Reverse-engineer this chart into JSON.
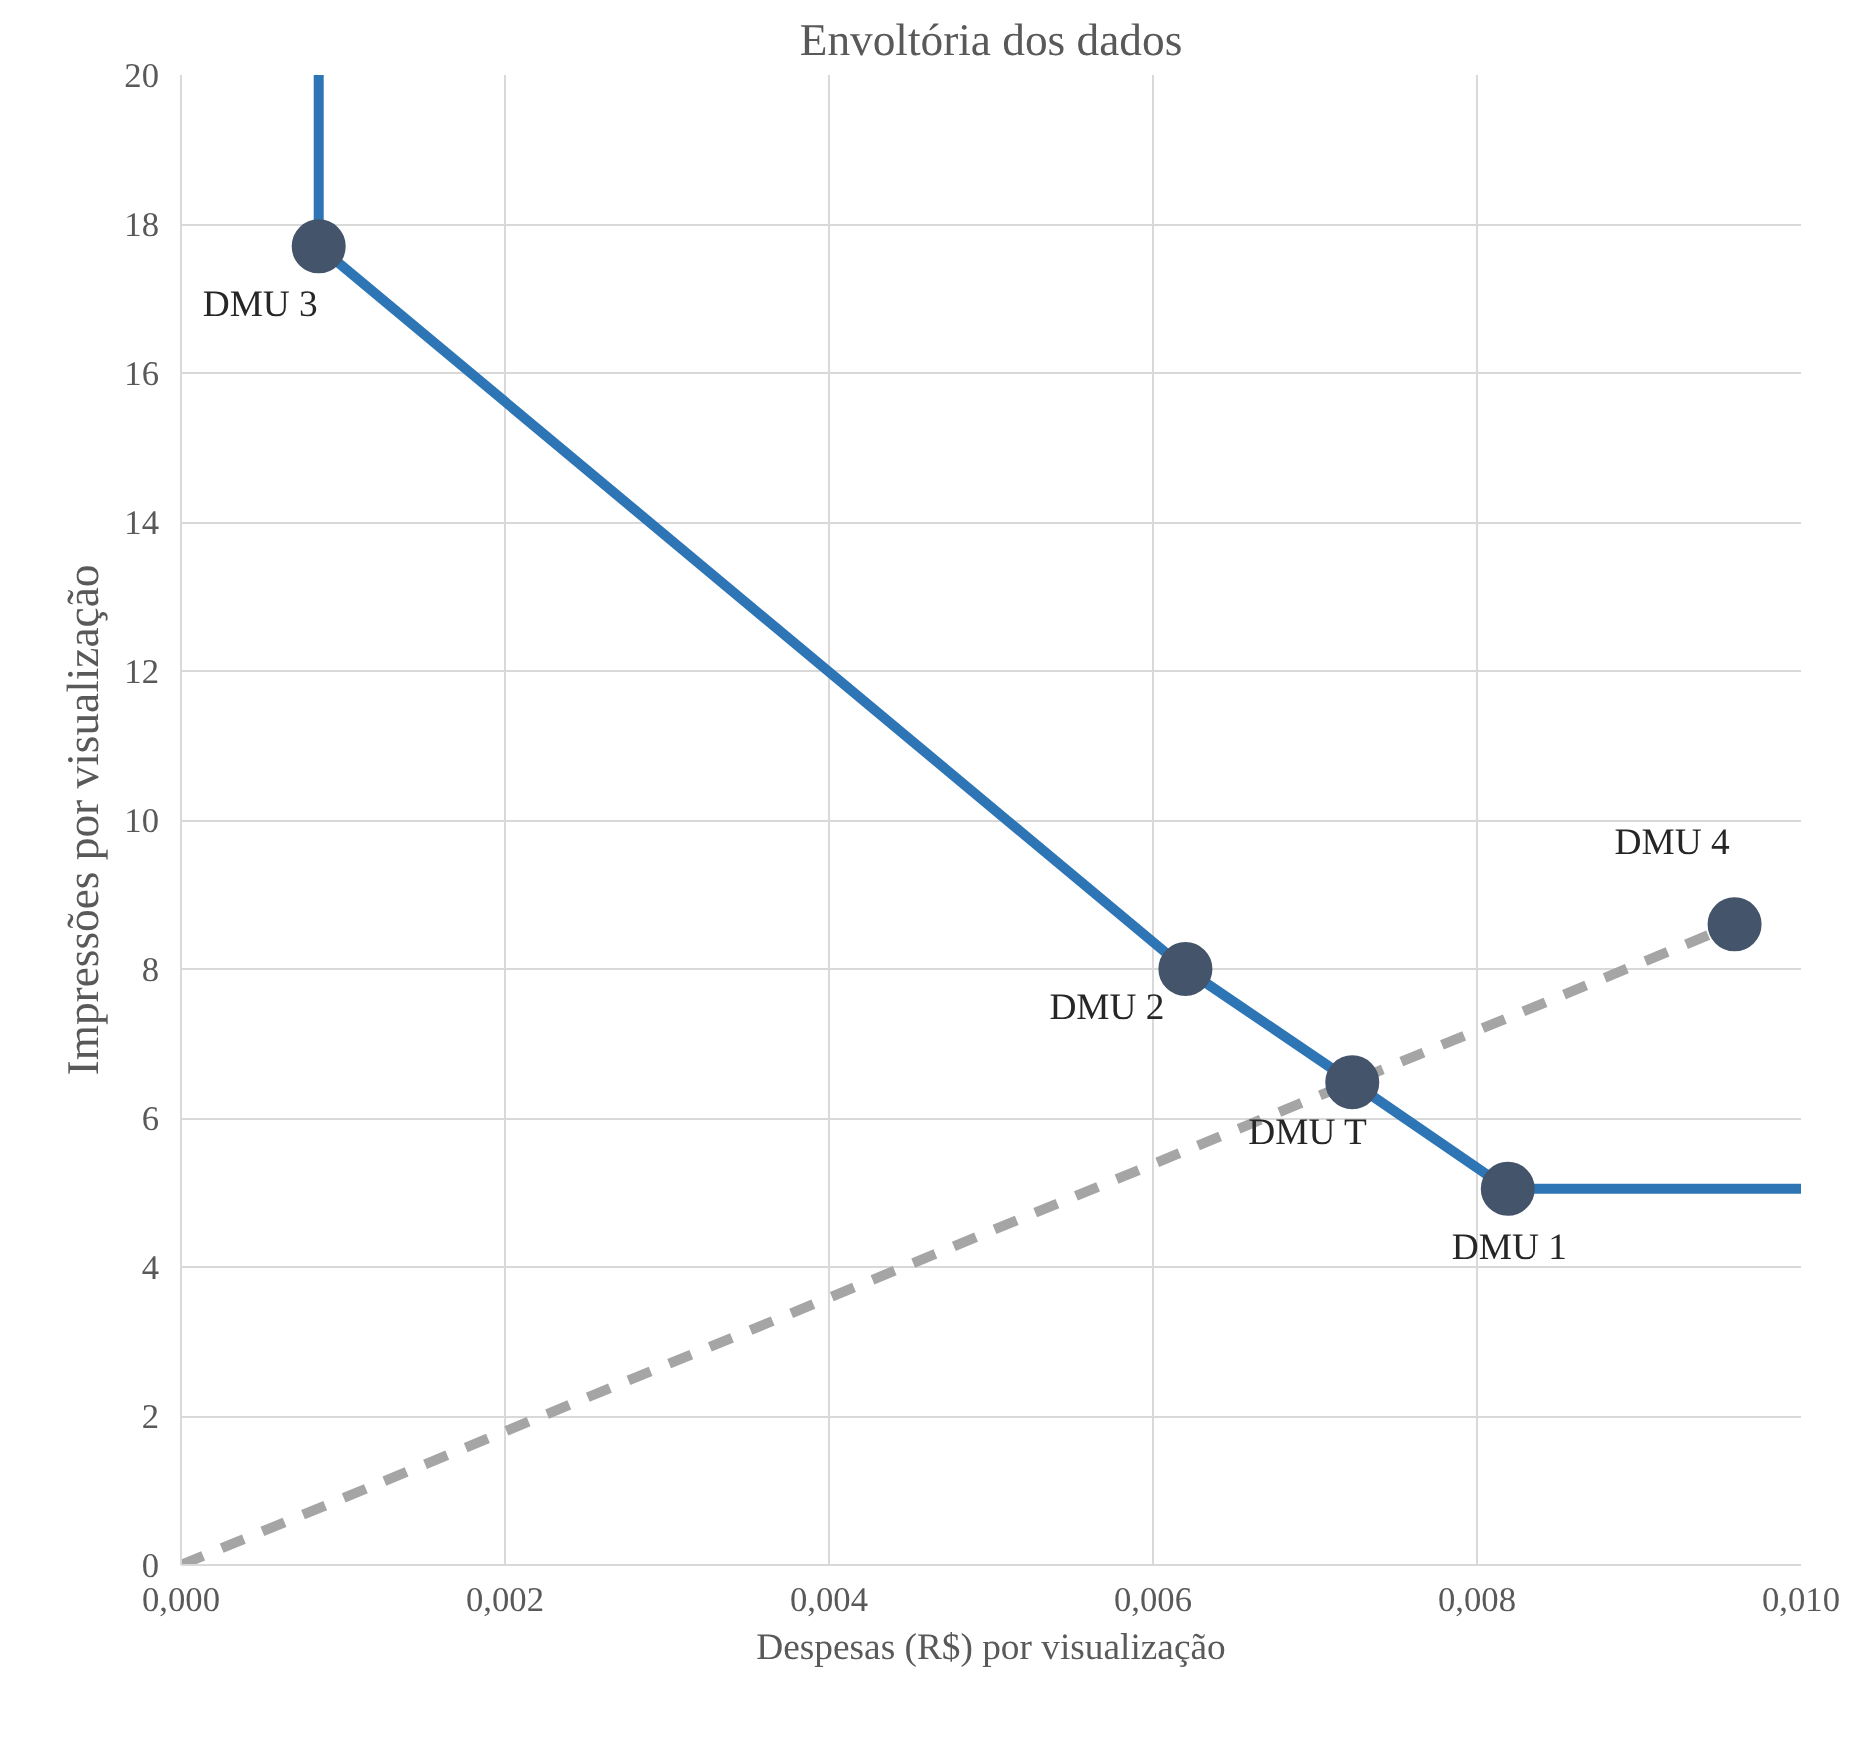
{
  "chart_data": {
    "type": "line",
    "title": "Envoltória dos dados",
    "xlabel": "Despesas (R$) por visualização",
    "ylabel": "Impressões por visualização",
    "xlim": [
      0,
      0.01
    ],
    "ylim": [
      0,
      20
    ],
    "xticks": [
      {
        "value": 0,
        "label": "0,000"
      },
      {
        "value": 0.002,
        "label": "0,002"
      },
      {
        "value": 0.004,
        "label": "0,004"
      },
      {
        "value": 0.006,
        "label": "0,006"
      },
      {
        "value": 0.008,
        "label": "0,008"
      },
      {
        "value": 0.01,
        "label": "0,010"
      }
    ],
    "yticks": [
      0,
      2,
      4,
      6,
      8,
      10,
      12,
      14,
      16,
      18,
      20
    ],
    "grid": true,
    "series": [
      {
        "color": "#2e75b6",
        "line_style": "solid",
        "x": [
          0.00085,
          0.00085,
          0.0062,
          0.00723,
          0.00819,
          0.01
        ],
        "values": [
          20,
          17.7,
          8.0,
          6.48,
          5.05,
          5.05
        ]
      },
      {
        "color": "#a5a5a5",
        "line_style": "dashed",
        "x": [
          0,
          0.00959
        ],
        "values": [
          0,
          8.6
        ]
      },
      {
        "type": "scatter",
        "color": "#44546a",
        "marker": "circle",
        "x": [
          0.00085,
          0.0062,
          0.00723,
          0.00819,
          0.00959
        ],
        "values": [
          17.7,
          8.0,
          6.48,
          5.05,
          8.6
        ]
      }
    ],
    "annotations": [
      {
        "text": "DMU 3",
        "x": 0.00085,
        "y": 17.7
      },
      {
        "text": "DMU 2",
        "x": 0.0062,
        "y": 8.0
      },
      {
        "text": "DMU T",
        "x": 0.00723,
        "y": 6.48
      },
      {
        "text": "DMU 1",
        "x": 0.00819,
        "y": 5.05
      },
      {
        "text": "DMU 4",
        "x": 0.00959,
        "y": 8.6
      }
    ]
  }
}
